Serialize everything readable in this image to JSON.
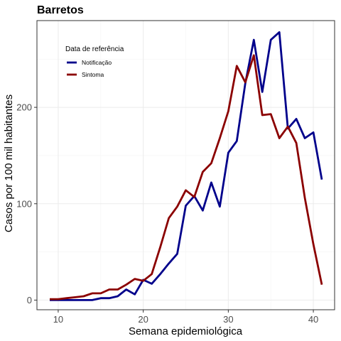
{
  "chart_data": {
    "type": "line",
    "title": "Barretos",
    "xlabel": "Semana epidemiológica",
    "ylabel": "Casos por 100 mil habitantes",
    "xlim": [
      7.5,
      42.5
    ],
    "ylim": [
      -10,
      290
    ],
    "x_ticks": [
      10,
      20,
      30,
      40
    ],
    "y_ticks": [
      0,
      100,
      200
    ],
    "grid": true,
    "legend": {
      "title": "Data de referência",
      "position": "top-left inside"
    },
    "series": [
      {
        "name": "Notificação",
        "color": "#00008B",
        "x": [
          9,
          10,
          11,
          12,
          13,
          14,
          15,
          16,
          17,
          18,
          19,
          20,
          21,
          22,
          23,
          24,
          25,
          26,
          27,
          28,
          29,
          30,
          31,
          32,
          33,
          34,
          35,
          36,
          37,
          38,
          39,
          40,
          41
        ],
        "y": [
          0,
          0,
          0,
          0,
          0,
          0,
          2,
          2,
          4,
          11,
          6,
          21,
          17,
          27,
          38,
          48,
          98,
          108,
          93,
          122,
          97,
          153,
          165,
          225,
          270,
          216,
          270,
          278,
          178,
          188,
          168,
          174,
          125
        ]
      },
      {
        "name": "Sintoma",
        "color": "#8B0000",
        "x": [
          9,
          10,
          11,
          12,
          13,
          14,
          15,
          16,
          17,
          18,
          19,
          20,
          21,
          22,
          23,
          24,
          25,
          26,
          27,
          28,
          29,
          30,
          31,
          32,
          33,
          34,
          35,
          36,
          37,
          38,
          39,
          40,
          41
        ],
        "y": [
          1,
          1,
          2,
          3,
          4,
          7,
          7,
          11,
          11,
          16,
          22,
          20,
          27,
          55,
          85,
          97,
          114,
          107,
          133,
          142,
          168,
          196,
          243,
          226,
          254,
          192,
          193,
          168,
          180,
          163,
          106,
          58,
          16
        ]
      }
    ]
  }
}
